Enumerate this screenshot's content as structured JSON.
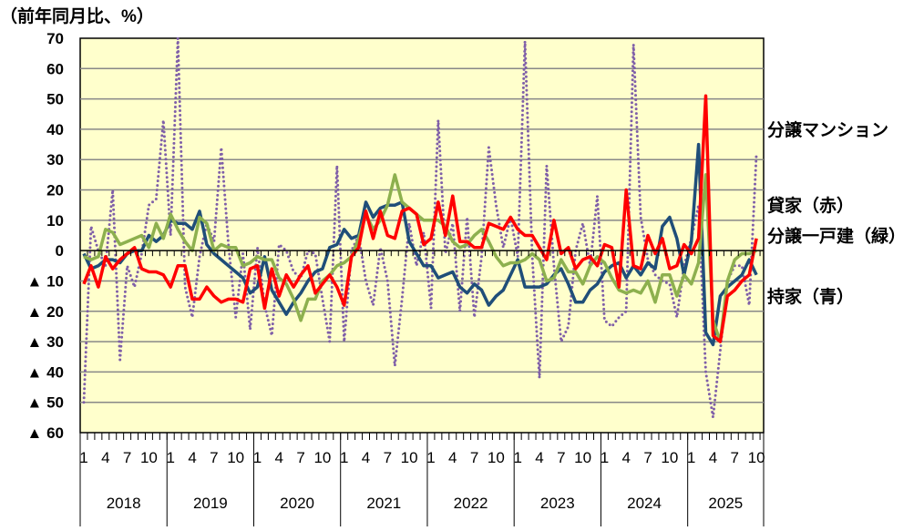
{
  "chart_data": {
    "type": "line",
    "unit_label": "（前年同月比、%）",
    "ylim": [
      -60,
      70
    ],
    "y_ticks": [
      70,
      60,
      50,
      40,
      30,
      20,
      10,
      0,
      -10,
      -20,
      -30,
      -40,
      -50,
      -60
    ],
    "y_tick_labels": [
      "70",
      "60",
      "50",
      "40",
      "30",
      "20",
      "10",
      "0",
      "▲ 10",
      "▲ 20",
      "▲ 30",
      "▲ 40",
      "▲ 50",
      "▲ 60"
    ],
    "years": [
      "2018",
      "2019",
      "2020",
      "2021",
      "2022",
      "2023",
      "2024",
      "2025"
    ],
    "month_tick_labels": [
      "1",
      "4",
      "7",
      "10"
    ],
    "grid": true,
    "start": "2018-01",
    "end": "2025-10",
    "series": [
      {
        "name": "分譲マンション",
        "color": "#7f5fa8",
        "style": "dotted",
        "label_y": 40,
        "values": [
          -50,
          8,
          0,
          -5,
          20,
          -36,
          -5,
          -12,
          -1,
          15,
          17,
          43,
          5,
          70,
          -12,
          -22,
          -2,
          9,
          3,
          34,
          2,
          -22,
          -1,
          -26,
          1,
          -18,
          -28,
          2,
          0,
          -7,
          -9,
          0,
          -1,
          -16,
          -30,
          28,
          -30,
          0,
          5,
          -10,
          -18,
          1,
          -10,
          -38,
          -16,
          9,
          -5,
          6,
          -19,
          43,
          -1,
          9,
          -20,
          11,
          -22,
          -2,
          34,
          15,
          1,
          11,
          -2,
          69,
          -2,
          -42,
          28,
          -5,
          -30,
          -25,
          0,
          9,
          -5,
          18,
          -23,
          -25,
          -22,
          -20,
          68,
          11,
          -3,
          -8,
          -10,
          -11,
          -22,
          -5,
          4,
          15,
          -40,
          -55,
          -33,
          -10,
          -5,
          -5,
          -18,
          32
        ]
      },
      {
        "name": "持家（青）",
        "color": "#1f4e79",
        "style": "solid",
        "label_y": -15,
        "values": [
          -1,
          -6,
          -5,
          -3,
          -3,
          -4,
          -1,
          0,
          0,
          5,
          3,
          5,
          10,
          9,
          9,
          7,
          13,
          2,
          -1,
          -3,
          -5,
          -7,
          -9,
          -14,
          -12,
          -2,
          -13,
          -17,
          -21,
          -17,
          -14,
          -10,
          -7,
          -6,
          1,
          2,
          7,
          4,
          5,
          16,
          11,
          14,
          15,
          15,
          16,
          3,
          -1,
          -5,
          -5,
          -9,
          -8,
          -7,
          -12,
          -14,
          -11,
          -13,
          -18,
          -15,
          -13,
          -8,
          -3,
          -12,
          -12,
          -12,
          -11,
          -8,
          -6,
          -11,
          -17,
          -17,
          -13,
          -11,
          -7,
          -5,
          -4,
          -9,
          -5,
          -8,
          -4,
          -6,
          8,
          11,
          4,
          -8,
          3,
          35,
          -27,
          -31,
          -15,
          -12,
          -10,
          -8,
          -3,
          -8
        ]
      },
      {
        "name": "分譲一戸建（緑）",
        "color": "#8db04e",
        "style": "solid",
        "label_y": 5,
        "values": [
          -2,
          -3,
          -2,
          7,
          6,
          2,
          3,
          4,
          5,
          1,
          9,
          4,
          12,
          7,
          3,
          0,
          11,
          9,
          0,
          2,
          1,
          1,
          -5,
          -4,
          -2,
          -3,
          -3,
          -9,
          -11,
          -16,
          -23,
          -16,
          -16,
          -10,
          -8,
          -5,
          -4,
          -2,
          4,
          12,
          7,
          10,
          15,
          25,
          16,
          14,
          12,
          10,
          10,
          10,
          8,
          3,
          1,
          2,
          5,
          7,
          3,
          -2,
          -5,
          -4,
          -4,
          -3,
          -1,
          -3,
          -10,
          -9,
          -3,
          -7,
          -7,
          -11,
          -5,
          -2,
          -4,
          -9,
          -13,
          -14,
          -13,
          -14,
          -10,
          -17,
          -8,
          -8,
          -15,
          -8,
          -11,
          -4,
          25,
          -23,
          -30,
          -10,
          -3,
          -1,
          -1,
          0
        ]
      },
      {
        "name": "貸家（赤）",
        "color": "#ff0000",
        "style": "solid",
        "label_y": 15,
        "values": [
          -11,
          -5,
          -12,
          -2,
          -6,
          -3,
          -1,
          1,
          -6,
          -7,
          -7,
          -8,
          -12,
          -5,
          -5,
          -16,
          -16,
          -12,
          -15,
          -17,
          -16,
          -16,
          -17,
          -6,
          -5,
          -19,
          -6,
          -15,
          -8,
          -12,
          -8,
          -5,
          -14,
          -11,
          -8,
          -12,
          -18,
          -2,
          1,
          13,
          4,
          13,
          5,
          4,
          13,
          14,
          12,
          2,
          4,
          16,
          5,
          18,
          3,
          3,
          1,
          1,
          9,
          8,
          7,
          11,
          7,
          5,
          5,
          1,
          -3,
          10,
          -1,
          1,
          -6,
          -3,
          -2,
          -5,
          2,
          1,
          -12,
          20,
          -5,
          -6,
          5,
          -1,
          4,
          -6,
          -5,
          2,
          -1,
          4,
          51,
          -28,
          -30,
          -15,
          -13,
          -10,
          -8,
          4
        ]
      }
    ]
  }
}
